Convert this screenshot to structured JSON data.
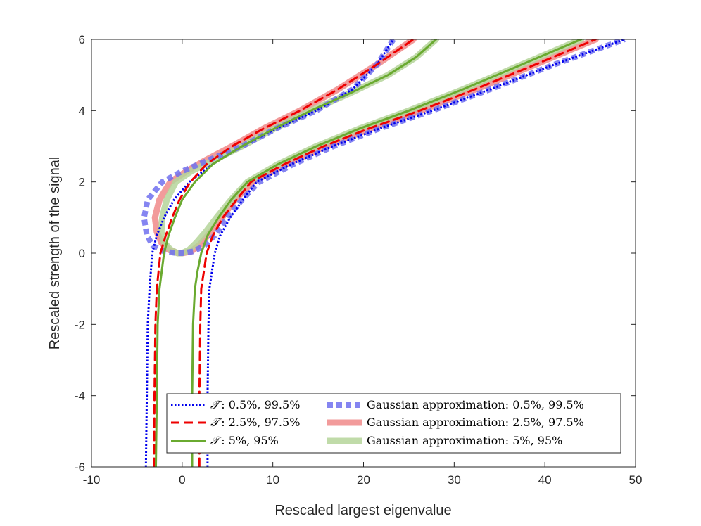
{
  "chart_data": {
    "type": "line",
    "title": "",
    "xlabel": "Rescaled largest eigenvalue",
    "ylabel": "Rescaled strength of the signal",
    "xlim": [
      -10,
      50
    ],
    "ylim": [
      -6,
      6
    ],
    "xticks": [
      "-10",
      "0",
      "10",
      "20",
      "30",
      "40",
      "50"
    ],
    "yticks": [
      "-6",
      "-4",
      "-2",
      "0",
      "2",
      "4",
      "6"
    ],
    "legend_position": "bottom-right",
    "legend": [
      {
        "symbol": "𝒯",
        "text": ":  0.5%, 99.5%"
      },
      {
        "symbol": "𝒯",
        "text": ":  2.5%, 97.5%"
      },
      {
        "symbol": "𝒯",
        "text": ":  5%, 95%"
      },
      {
        "symbol": "",
        "text": "Gaussian approximation: 0.5%, 99.5%"
      },
      {
        "symbol": "",
        "text": "Gaussian approximation: 2.5%, 97.5%"
      },
      {
        "symbol": "",
        "text": "Gaussian approximation: 5%, 95%"
      }
    ],
    "series": [
      {
        "name": "T: 0.5%",
        "color": "#0000ee",
        "style": "dotted",
        "width": 3,
        "x": [
          -4.0,
          -3.9,
          -3.8,
          -3.6,
          -3.3,
          -2.8,
          -2.0,
          -0.9,
          0.8,
          3.4,
          6.6,
          10.4,
          14.8,
          18.8,
          21.5,
          23.3
        ],
        "y": [
          -6,
          -4,
          -2,
          -1,
          0,
          0.5,
          1,
          1.5,
          2,
          2.5,
          3,
          3.5,
          4,
          4.6,
          5.3,
          6
        ]
      },
      {
        "name": "T: 99.5%",
        "color": "#0000ee",
        "style": "dotted",
        "width": 3,
        "x": [
          2.8,
          2.8,
          2.9,
          3.0,
          3.3,
          3.6,
          4.2,
          5.3,
          6.7,
          8.2,
          12.1,
          16.6,
          21.8,
          27.6,
          34.0,
          41.1,
          48.8
        ],
        "y": [
          -6,
          -4,
          -2,
          -1,
          -0.5,
          0,
          0.5,
          1,
          1.5,
          2,
          2.5,
          3,
          3.5,
          4,
          4.6,
          5.3,
          6
        ]
      },
      {
        "name": "T: 2.5%",
        "color": "#ee0000",
        "style": "dashed",
        "width": 3,
        "x": [
          -3.1,
          -3.05,
          -2.95,
          -2.8,
          -2.4,
          -1.8,
          -1.1,
          -0.3,
          0.9,
          2.7,
          5.5,
          9.0,
          13.0,
          17.2,
          21.5,
          25.5
        ],
        "y": [
          -6,
          -4,
          -2,
          -1,
          0,
          0.5,
          1,
          1.5,
          2,
          2.5,
          3,
          3.5,
          4,
          4.6,
          5.3,
          6
        ]
      },
      {
        "name": "T: 97.5%",
        "color": "#ee0000",
        "style": "dashed",
        "width": 3,
        "x": [
          1.9,
          1.9,
          2.0,
          2.1,
          2.4,
          2.7,
          3.4,
          4.5,
          6.0,
          7.6,
          11.3,
          15.6,
          20.6,
          26.2,
          32.3,
          39.0,
          45.6
        ],
        "y": [
          -6,
          -4,
          -2,
          -1,
          -0.5,
          0,
          0.5,
          1,
          1.5,
          2,
          2.5,
          3,
          3.5,
          4,
          4.6,
          5.3,
          6
        ]
      },
      {
        "name": "T: 5%",
        "color": "#6aaa30",
        "style": "solid",
        "width": 3,
        "x": [
          -2.9,
          -2.8,
          -2.7,
          -2.5,
          -2.0,
          -1.5,
          -0.8,
          0.0,
          1.4,
          3.4,
          6.6,
          10.2,
          14.2,
          18.6,
          22.7,
          25.8,
          28.0
        ],
        "y": [
          -6,
          -4,
          -2,
          -1,
          0,
          0.5,
          1,
          1.5,
          2,
          2.5,
          3,
          3.5,
          4,
          4.5,
          5.0,
          5.5,
          6
        ]
      },
      {
        "name": "T: 95%",
        "color": "#6aaa30",
        "style": "solid",
        "width": 3,
        "x": [
          1.1,
          1.1,
          1.2,
          1.4,
          1.7,
          2.1,
          2.8,
          4.0,
          5.4,
          7.2,
          10.6,
          14.8,
          19.6,
          25.0,
          31.0,
          37.5,
          44.0
        ],
        "y": [
          -6,
          -4,
          -2,
          -1,
          -0.5,
          0,
          0.5,
          1,
          1.5,
          2,
          2.5,
          3,
          3.5,
          4,
          4.6,
          5.3,
          6
        ]
      },
      {
        "name": "Gaussian approximation: 0.5%, 99.5%",
        "color": "#7070ee",
        "style": "dotted",
        "width": 8,
        "x": [
          23.3,
          21.5,
          18.8,
          14.8,
          10.4,
          6.6,
          2.8,
          0.0,
          -2.2,
          -3.8,
          -4.2,
          -3.9,
          -3.2,
          -2.0,
          -0.6,
          0.0,
          1.2,
          2.4,
          3.6,
          5.0,
          6.6,
          8.5,
          12.3,
          16.7,
          21.8,
          27.6,
          34.0,
          41.1,
          48.8
        ],
        "y": [
          6,
          5.3,
          4.6,
          4,
          3.5,
          3,
          2.6,
          2.3,
          2.0,
          1.5,
          1.0,
          0.5,
          0.2,
          0.05,
          0.0,
          0.0,
          0.05,
          0.2,
          0.5,
          1.0,
          1.5,
          2.0,
          2.5,
          3,
          3.5,
          4,
          4.6,
          5.3,
          6
        ]
      },
      {
        "name": "Gaussian approximation: 2.5%, 97.5%",
        "color": "#f08a8a",
        "style": "solid",
        "width": 9,
        "x": [
          25.5,
          21.5,
          17.2,
          13.0,
          9.0,
          5.5,
          2.5,
          0.5,
          -1.3,
          -2.5,
          -3.0,
          -2.8,
          -2.3,
          -1.5,
          -0.5,
          0.0,
          1.0,
          2.0,
          3.0,
          4.4,
          5.8,
          7.8,
          11.5,
          15.8,
          20.8,
          26.3,
          32.4,
          39.0,
          45.6
        ],
        "y": [
          6,
          5.3,
          4.6,
          4,
          3.5,
          3,
          2.6,
          2.3,
          2.0,
          1.5,
          1.0,
          0.6,
          0.3,
          0.1,
          0.0,
          0.0,
          0.05,
          0.25,
          0.55,
          1.0,
          1.5,
          2.0,
          2.5,
          3,
          3.5,
          4,
          4.6,
          5.3,
          6
        ]
      },
      {
        "name": "Gaussian approximation: 5%, 95%",
        "color": "#b5d59a",
        "style": "solid",
        "width": 9,
        "x": [
          28.0,
          25.8,
          22.7,
          18.6,
          14.2,
          10.2,
          6.6,
          3.4,
          1.0,
          -0.7,
          -1.7,
          -2.2,
          -2.3,
          -2.0,
          -1.3,
          -0.5,
          0.0,
          0.8,
          1.6,
          2.6,
          3.8,
          5.4,
          7.2,
          10.6,
          14.8,
          19.6,
          25.0,
          31.0,
          37.5,
          44.0
        ],
        "y": [
          6,
          5.5,
          5.0,
          4.5,
          4,
          3.5,
          3,
          2.6,
          2.3,
          2.0,
          1.5,
          1.0,
          0.6,
          0.3,
          0.1,
          0.0,
          0.0,
          0.1,
          0.3,
          0.6,
          1.0,
          1.5,
          2.0,
          2.5,
          3,
          3.5,
          4,
          4.6,
          5.3,
          6
        ]
      }
    ]
  }
}
